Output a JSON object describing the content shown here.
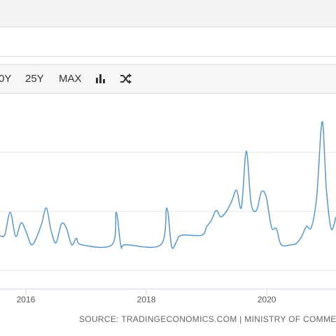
{
  "toolbar": {
    "buttons": [
      "0Y",
      "25Y",
      "MAX"
    ]
  },
  "chart_data": {
    "type": "line",
    "x": [
      2015.57,
      2015.65,
      2015.74,
      2015.83,
      2015.92,
      2016.0,
      2016.09,
      2016.17,
      2016.26,
      2016.34,
      2016.42,
      2016.5,
      2016.59,
      2016.67,
      2016.76,
      2016.84,
      2016.92,
      2017.43,
      2017.5,
      2017.58,
      2017.66,
      2018.24,
      2018.34,
      2018.42,
      2018.5,
      2018.58,
      2018.92,
      2019.0,
      2019.08,
      2019.16,
      2019.24,
      2019.34,
      2019.42,
      2019.5,
      2019.58,
      2019.66,
      2019.74,
      2019.83,
      2019.91,
      2019.99,
      2020.08,
      2020.16,
      2020.24,
      2020.41,
      2020.49,
      2020.58,
      2020.66,
      2020.74,
      2020.83,
      2020.92,
      2020.99,
      2021.07,
      2021.15
    ],
    "values": [
      0.59,
      0.61,
      0.99,
      0.58,
      0.81,
      0.67,
      0.44,
      0.55,
      0.79,
      1.06,
      0.67,
      0.47,
      0.79,
      0.73,
      0.44,
      0.55,
      0.44,
      0.44,
      0.99,
      0.41,
      0.44,
      0.44,
      1.06,
      0.41,
      0.49,
      0.6,
      0.6,
      0.74,
      0.85,
      1.02,
      0.91,
      1.02,
      1.18,
      1.36,
      1.07,
      2.02,
      1.14,
      1.02,
      1.33,
      1.25,
      0.73,
      0.71,
      0.44,
      0.44,
      0.46,
      0.58,
      0.75,
      0.73,
      1.25,
      2.52,
      1.38,
      0.71,
      0.91
    ],
    "color": "#5b97c6",
    "xlim": [
      2015.57,
      2021.15
    ],
    "xticks": [
      2016,
      2018,
      2020
    ],
    "ylim": [
      -0.31,
      2.8
    ],
    "yticks": [
      0,
      1,
      2
    ],
    "grid": true
  },
  "source": "SOURCE: TRADINGECONOMICS.COM | MINISTRY OF COMMERCE & IND"
}
